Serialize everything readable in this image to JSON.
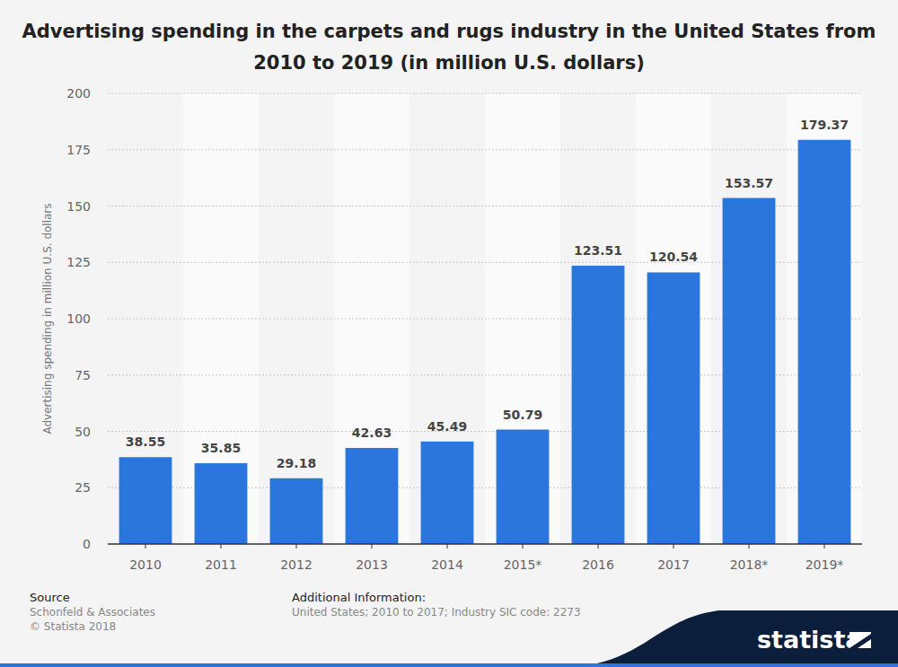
{
  "chart_data": {
    "type": "bar",
    "title": "Advertising spending in the carpets and rugs industry in the United States from 2010 to 2019 (in million U.S. dollars)",
    "y_label": "Advertising spending in million U.S. dollars",
    "categories": [
      "2010",
      "2011",
      "2012",
      "2013",
      "2014",
      "2015*",
      "2016",
      "2017",
      "2018*",
      "2019*"
    ],
    "values": [
      38.55,
      35.85,
      29.18,
      42.63,
      45.49,
      50.79,
      123.51,
      120.54,
      153.57,
      179.37
    ],
    "color": "#2a76dd",
    "ylim": [
      0,
      200
    ],
    "yticks": [
      0,
      25,
      50,
      75,
      100,
      125,
      150,
      175,
      200
    ],
    "grid": true,
    "data_labels": true
  },
  "footer": {
    "source_label": "Source",
    "source": "Schonfeld & Associates",
    "copyright": "© Statista 2018",
    "info_label": "Additional Information:",
    "info": "United States; 2010 to 2017; Industry SIC code: 2273",
    "brand": "statista"
  }
}
